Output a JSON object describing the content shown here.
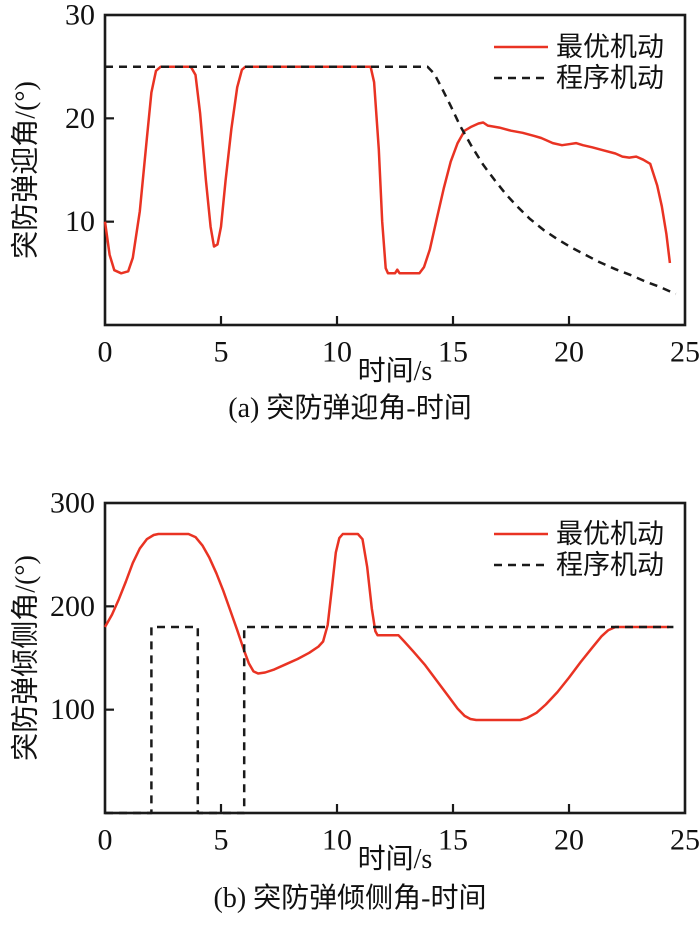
{
  "figure": {
    "background": "#ffffff",
    "text_color": "#111111",
    "axis_color": "#1a1a1a"
  },
  "chart_data": [
    {
      "type": "line",
      "title": "",
      "caption": "(a) 突防弹迎角-时间",
      "xlabel": "时间/s",
      "ylabel": "突防弹迎角/(°)",
      "xlim": [
        0,
        25
      ],
      "ylim": [
        0,
        30
      ],
      "xticks": [
        0,
        5,
        10,
        15,
        20,
        25
      ],
      "yticks": [
        10,
        20,
        30
      ],
      "grid": false,
      "legend_position": "top-right",
      "series": [
        {
          "name": "最优机动",
          "color": "#e93323",
          "style": "solid",
          "points": [
            [
              0,
              10
            ],
            [
              0.2,
              6.8
            ],
            [
              0.4,
              5.3
            ],
            [
              0.7,
              5.0
            ],
            [
              1.0,
              5.2
            ],
            [
              1.2,
              6.5
            ],
            [
              1.5,
              11
            ],
            [
              1.8,
              18
            ],
            [
              2.0,
              22.5
            ],
            [
              2.2,
              24.6
            ],
            [
              2.4,
              25
            ],
            [
              3.7,
              25
            ],
            [
              3.9,
              24.2
            ],
            [
              4.1,
              20.5
            ],
            [
              4.35,
              14
            ],
            [
              4.55,
              9.5
            ],
            [
              4.7,
              7.6
            ],
            [
              4.85,
              7.8
            ],
            [
              5.0,
              9.5
            ],
            [
              5.2,
              14
            ],
            [
              5.45,
              19
            ],
            [
              5.7,
              23
            ],
            [
              5.9,
              24.7
            ],
            [
              6.05,
              25
            ],
            [
              11.45,
              25
            ],
            [
              11.6,
              23.5
            ],
            [
              11.8,
              17
            ],
            [
              11.95,
              10
            ],
            [
              12.1,
              5.5
            ],
            [
              12.2,
              5.0
            ],
            [
              12.5,
              5.0
            ],
            [
              12.6,
              5.35
            ],
            [
              12.7,
              5.0
            ],
            [
              13.55,
              5.0
            ],
            [
              13.75,
              5.6
            ],
            [
              14.0,
              7.3
            ],
            [
              14.3,
              10.3
            ],
            [
              14.6,
              13.2
            ],
            [
              14.9,
              15.8
            ],
            [
              15.2,
              17.6
            ],
            [
              15.5,
              18.8
            ],
            [
              15.8,
              19.2
            ],
            [
              16.1,
              19.5
            ],
            [
              16.3,
              19.6
            ],
            [
              16.5,
              19.3
            ],
            [
              17.0,
              19.1
            ],
            [
              17.5,
              18.8
            ],
            [
              18.0,
              18.6
            ],
            [
              18.5,
              18.3
            ],
            [
              18.8,
              18.1
            ],
            [
              19.0,
              17.9
            ],
            [
              19.3,
              17.6
            ],
            [
              19.7,
              17.4
            ],
            [
              20.0,
              17.5
            ],
            [
              20.3,
              17.6
            ],
            [
              20.6,
              17.4
            ],
            [
              21.0,
              17.2
            ],
            [
              21.5,
              16.9
            ],
            [
              22.0,
              16.6
            ],
            [
              22.3,
              16.3
            ],
            [
              22.6,
              16.2
            ],
            [
              22.9,
              16.3
            ],
            [
              23.2,
              16.0
            ],
            [
              23.5,
              15.6
            ],
            [
              23.8,
              13.5
            ],
            [
              24.0,
              11.5
            ],
            [
              24.2,
              8.8
            ],
            [
              24.35,
              6.0
            ]
          ]
        },
        {
          "name": "程序机动",
          "color": "#1a1a1a",
          "style": "dashed",
          "points": [
            [
              0,
              25
            ],
            [
              13.9,
              25
            ],
            [
              14.2,
              24.3
            ],
            [
              14.5,
              23.0
            ],
            [
              14.9,
              21.2
            ],
            [
              15.3,
              19.3
            ],
            [
              15.8,
              17.3
            ],
            [
              16.3,
              15.5
            ],
            [
              16.8,
              14.0
            ],
            [
              17.3,
              12.6
            ],
            [
              17.8,
              11.4
            ],
            [
              18.3,
              10.3
            ],
            [
              18.9,
              9.2
            ],
            [
              19.5,
              8.3
            ],
            [
              20.1,
              7.5
            ],
            [
              20.7,
              6.8
            ],
            [
              21.3,
              6.1
            ],
            [
              22.0,
              5.4
            ],
            [
              22.7,
              4.8
            ],
            [
              23.3,
              4.2
            ],
            [
              23.9,
              3.7
            ],
            [
              24.4,
              3.2
            ],
            [
              24.6,
              3.0
            ]
          ]
        }
      ]
    },
    {
      "type": "line",
      "title": "",
      "caption": "(b) 突防弹倾侧角-时间",
      "xlabel": "时间/s",
      "ylabel": "突防弹倾侧角/(°)",
      "xlim": [
        0,
        25
      ],
      "ylim": [
        0,
        300
      ],
      "xticks": [
        0,
        5,
        10,
        15,
        20,
        25
      ],
      "yticks": [
        100,
        200,
        300
      ],
      "grid": false,
      "legend_position": "top-right",
      "series": [
        {
          "name": "最优机动",
          "color": "#e93323",
          "style": "solid",
          "points": [
            [
              0,
              180
            ],
            [
              0.3,
              192
            ],
            [
              0.6,
              207
            ],
            [
              0.9,
              224
            ],
            [
              1.2,
              242
            ],
            [
              1.5,
              256
            ],
            [
              1.8,
              265
            ],
            [
              2.1,
              269
            ],
            [
              2.3,
              270
            ],
            [
              3.6,
              270
            ],
            [
              3.9,
              267
            ],
            [
              4.2,
              259
            ],
            [
              4.5,
              247
            ],
            [
              4.8,
              232
            ],
            [
              5.1,
              215
            ],
            [
              5.4,
              196
            ],
            [
              5.7,
              177
            ],
            [
              6.0,
              157
            ],
            [
              6.2,
              145
            ],
            [
              6.4,
              137
            ],
            [
              6.6,
              135
            ],
            [
              6.9,
              136
            ],
            [
              7.3,
              139
            ],
            [
              7.8,
              144
            ],
            [
              8.3,
              149
            ],
            [
              8.8,
              155
            ],
            [
              9.2,
              161
            ],
            [
              9.4,
              166
            ],
            [
              9.6,
              182
            ],
            [
              9.8,
              222
            ],
            [
              9.95,
              252
            ],
            [
              10.1,
              266
            ],
            [
              10.25,
              270
            ],
            [
              10.9,
              270
            ],
            [
              11.1,
              265
            ],
            [
              11.3,
              238
            ],
            [
              11.5,
              198
            ],
            [
              11.65,
              176
            ],
            [
              11.75,
              172
            ],
            [
              12.65,
              172
            ],
            [
              12.9,
              166
            ],
            [
              13.3,
              156
            ],
            [
              13.8,
              143
            ],
            [
              14.3,
              128
            ],
            [
              14.8,
              113
            ],
            [
              15.2,
              101
            ],
            [
              15.5,
              94
            ],
            [
              15.75,
              91
            ],
            [
              16.0,
              90
            ],
            [
              17.9,
              90
            ],
            [
              18.2,
              92
            ],
            [
              18.6,
              97
            ],
            [
              19.0,
              105
            ],
            [
              19.5,
              117
            ],
            [
              20.0,
              131
            ],
            [
              20.5,
              146
            ],
            [
              21.0,
              160
            ],
            [
              21.4,
              171
            ],
            [
              21.7,
              177
            ],
            [
              22.0,
              180
            ],
            [
              24.3,
              180
            ]
          ]
        },
        {
          "name": "程序机动",
          "color": "#1a1a1a",
          "style": "dashed",
          "points": [
            [
              0,
              0
            ],
            [
              2,
              0
            ],
            [
              2,
              180
            ],
            [
              4,
              180
            ],
            [
              4,
              0
            ],
            [
              6,
              0
            ],
            [
              6,
              180
            ],
            [
              24.5,
              180
            ]
          ]
        }
      ]
    }
  ]
}
